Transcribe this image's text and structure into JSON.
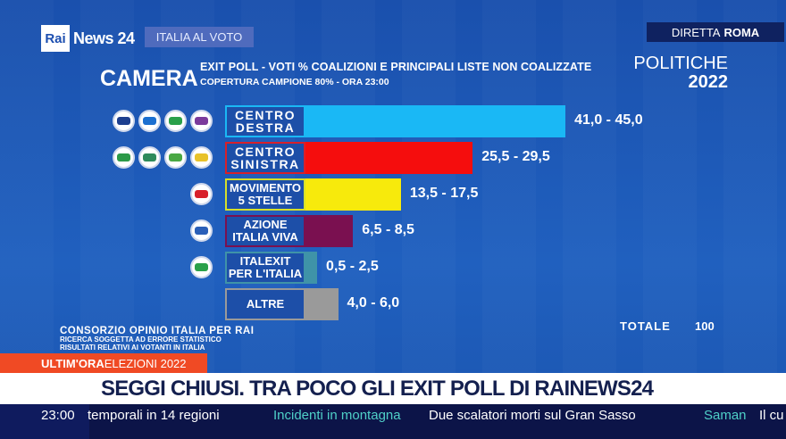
{
  "header": {
    "brand": "Rai",
    "brand2": "News 24",
    "section": "ITALIA AL VOTO",
    "live": "DIRETTA",
    "city": "ROMA"
  },
  "title": {
    "chamber": "CAMERA",
    "subtitle": "EXIT POLL - VOTI % COALIZIONI E PRINCIPALI LISTE NON COALIZZATE",
    "coverage": "COPERTURA CAMPIONE 80% - ORA 23:00",
    "election": "POLITICHE",
    "year": "2022"
  },
  "chart_data": {
    "type": "bar",
    "orientation": "horizontal",
    "categories": [
      "CENTRO DESTRA",
      "CENTRO SINISTRA",
      "MOVIMENTO 5 STELLE",
      "AZIONE ITALIA VIVA",
      "ITALEXIT PER L'ITALIA",
      "ALTRE"
    ],
    "ranges": [
      [
        41.0,
        45.0
      ],
      [
        25.5,
        29.5
      ],
      [
        13.5,
        17.5
      ],
      [
        6.5,
        8.5
      ],
      [
        0.5,
        2.5
      ],
      [
        4.0,
        6.0
      ]
    ],
    "labels": [
      "41,0 - 45,0",
      "25,5 - 29,5",
      "13,5 - 17,5",
      "6,5 - 8,5",
      "0,5 - 2,5",
      "4,0 - 6,0"
    ],
    "colors": [
      "#1ab8f5",
      "#f50d0d",
      "#f7ea0c",
      "#7a1050",
      "#3f93a8",
      "#9a9a9a"
    ],
    "border_colors": [
      "#1ab8f5",
      "#d8202a",
      "#d6e02a",
      "#7a1050",
      "#3f93a8",
      "#9a9a9a"
    ],
    "party_logos": [
      4,
      4,
      1,
      1,
      1,
      0
    ],
    "total_label": "TOTALE",
    "total": "100"
  },
  "footer": {
    "source": "CONSORZIO OPINIO ITALIA PER RAI",
    "note1": "RICERCA SOGGETTA AD ERRORE STATISTICO",
    "note2": "RISULTATI RELATIVI AI VOTANTI IN ITALIA"
  },
  "breaking": {
    "tag": "ULTIM'ORA",
    "topic": "ELEZIONI 2022",
    "headline": "SEGGI CHIUSI. TRA POCO GLI EXIT POLL DI RAINEWS24"
  },
  "ticker": {
    "time": "23:00",
    "items": [
      {
        "text": "temporali in 14 regioni"
      },
      {
        "topic": "Incidenti in montagna",
        "text": "Due scalatori morti sul Gran Sasso"
      },
      {
        "topic": "Saman",
        "text": "Il cu"
      }
    ]
  }
}
